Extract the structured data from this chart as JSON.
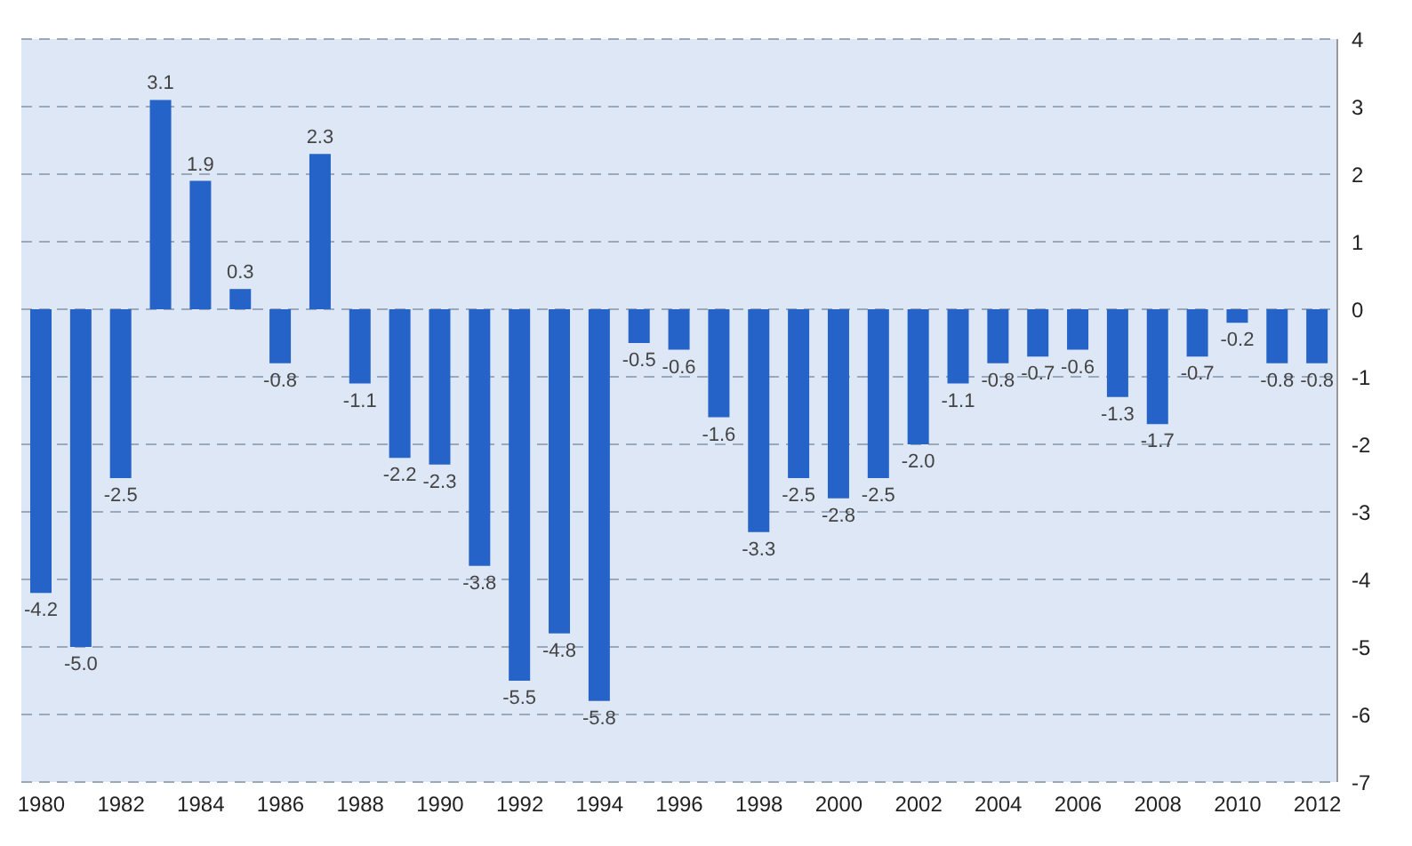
{
  "chart_data": {
    "type": "bar",
    "categories": [
      "1980",
      null,
      "1982",
      null,
      "1984",
      null,
      "1986",
      null,
      "1988",
      null,
      "1990",
      null,
      "1992",
      null,
      "1994",
      null,
      "1996",
      null,
      "1998",
      null,
      "2000",
      null,
      "2002",
      null,
      "2004",
      null,
      "2006",
      null,
      "2008",
      null,
      "2010",
      null,
      "2012"
    ],
    "values": [
      -4.2,
      -5.0,
      -2.5,
      3.1,
      1.9,
      0.3,
      -0.8,
      2.3,
      -1.1,
      -2.2,
      -2.3,
      -3.8,
      -5.5,
      -4.8,
      -5.8,
      -0.5,
      -0.6,
      -1.6,
      -3.3,
      -2.5,
      -2.8,
      -2.5,
      -2.0,
      -1.1,
      -0.8,
      -0.7,
      -0.6,
      -1.3,
      -1.7,
      -0.7,
      -0.2,
      -0.8,
      -0.8
    ],
    "value_labels": [
      "-4.2",
      "-5.0",
      "-2.5",
      "3.1",
      "1.9",
      "0.3",
      "-0.8",
      "2.3",
      "-1.1",
      "-2.2",
      "-2.3",
      "-3.8",
      "-5.5",
      "-4.8",
      "-5.8",
      "-0.5",
      "-0.6",
      "-1.6",
      "-3.3",
      "-2.5",
      "-2.8",
      "-2.5",
      "-2.0",
      "-1.1",
      "-0.8",
      "-0.7",
      "-0.6",
      "-1.3",
      "-1.7",
      "-0.7",
      "-0.2",
      "-0.8",
      "-0.8"
    ],
    "color": "#2563c9",
    "ylim": [
      -7,
      4
    ],
    "yticks": [
      4,
      3,
      2,
      1,
      0,
      -1,
      -2,
      -3,
      -4,
      -5,
      -6,
      -7
    ],
    "grid": "y"
  }
}
